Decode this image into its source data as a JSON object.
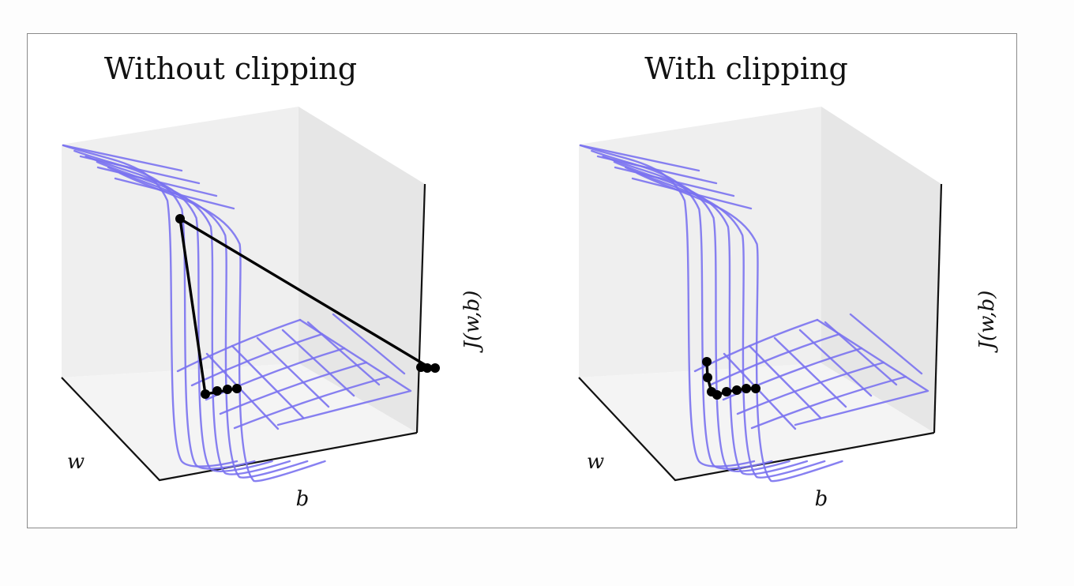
{
  "figure": {
    "panels": [
      {
        "id": "without",
        "title": "Without clipping",
        "xlabel": "w",
        "ylabel": "b",
        "zlabel": "J(w,b)"
      },
      {
        "id": "with",
        "title": "With clipping",
        "xlabel": "w",
        "ylabel": "b",
        "zlabel": "J(w,b)"
      }
    ],
    "colors": {
      "surface_wireframe": "#7a72f0",
      "trajectory": "#000000",
      "pane_back": "#ececec",
      "pane_side": "#e4e4e4",
      "pane_floor": "#f3f3f3"
    }
  }
}
